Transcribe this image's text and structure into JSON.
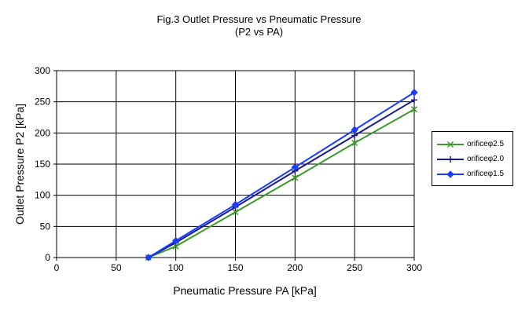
{
  "chart_data": {
    "type": "line",
    "title": "Fig.3 Outlet Pressure vs Pneumatic Pressure",
    "subtitle": "(P2 vs PA)",
    "xlabel": "Pneumatic Pressure PA [kPa]",
    "ylabel": "Outlet Pressure P2 [kPa]",
    "xlim": [
      0,
      300
    ],
    "ylim": [
      0,
      300
    ],
    "xticks": [
      "0",
      "50",
      "100",
      "150",
      "200",
      "250",
      "300"
    ],
    "yticks": [
      "0",
      "50",
      "100",
      "150",
      "200",
      "250",
      "300"
    ],
    "grid": true,
    "legend_position": "right",
    "x": [
      77,
      100,
      150,
      200,
      250,
      300
    ],
    "series": [
      {
        "name": "orificeφ2.5",
        "values": [
          0,
          18,
          73,
          128,
          184,
          238
        ],
        "color": "#3a9a2a",
        "marker": "x"
      },
      {
        "name": "orificeφ2.0",
        "values": [
          0,
          24,
          81,
          139,
          196,
          253
        ],
        "color": "#1a1a8c",
        "marker": "plus"
      },
      {
        "name": "orificeφ1.5",
        "values": [
          0,
          27,
          85,
          145,
          205,
          265
        ],
        "color": "#1a3cff",
        "marker": "diamond"
      }
    ]
  }
}
